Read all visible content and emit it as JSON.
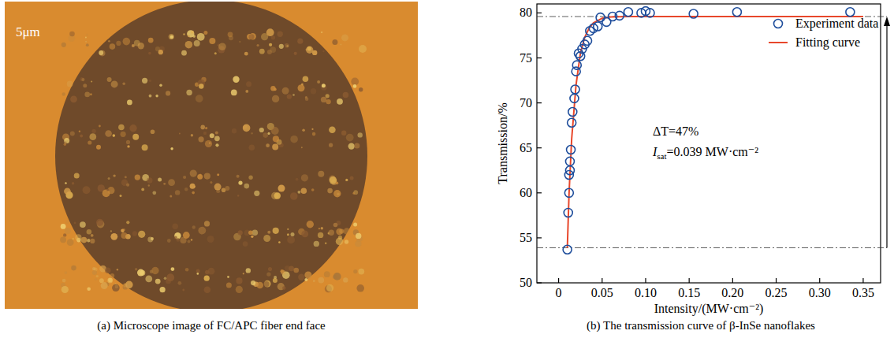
{
  "image_panel": {
    "scale_label": "5μm",
    "caption": "(a) Microscope image of FC/APC fiber end face"
  },
  "chart_data": {
    "type": "scatter",
    "caption": "(b) The transmission curve of β-InSe nanoflakes",
    "x_label": "Intensity/(MW·cm⁻²)",
    "y_label": "Transmission/%",
    "xlim": [
      -0.025,
      0.37
    ],
    "ylim": [
      50,
      81
    ],
    "xticks": [
      0,
      0.05,
      {
        "value": 0.1,
        "label": "0.10"
      },
      0.15,
      {
        "value": 0.2,
        "label": "0.20"
      },
      0.25,
      {
        "value": 0.3,
        "label": "0.30"
      },
      0.35
    ],
    "yticks": [
      50,
      55,
      60,
      65,
      70,
      75,
      80
    ],
    "grid": false,
    "legend": "upper right",
    "reference_lines": [
      79.6,
      53.9
    ],
    "annotations": [
      {
        "text": "ΔT=47%"
      },
      {
        "symbol": "I",
        "subscript": "sat",
        "text": "=0.039 MW·cm⁻²"
      }
    ],
    "series": [
      {
        "name": "Experiment data",
        "type": "scatter",
        "marker": "circle",
        "color": "#1f4e9c",
        "x": [
          0.01,
          0.011,
          0.012,
          0.012,
          0.013,
          0.013,
          0.014,
          0.015,
          0.016,
          0.018,
          0.019,
          0.02,
          0.021,
          0.023,
          0.025,
          0.027,
          0.03,
          0.033,
          0.036,
          0.04,
          0.045,
          0.048,
          0.055,
          0.062,
          0.07,
          0.08,
          0.095,
          0.1,
          0.105,
          0.155,
          0.205,
          0.335
        ],
        "values": [
          53.7,
          57.8,
          60.0,
          62.0,
          62.5,
          63.5,
          64.8,
          67.8,
          69.0,
          70.5,
          71.5,
          73.5,
          74.2,
          75.5,
          75.2,
          76.0,
          76.5,
          76.9,
          78.0,
          78.3,
          78.5,
          79.5,
          79.0,
          79.6,
          79.7,
          80.1,
          80.0,
          80.2,
          80.0,
          79.9,
          80.1,
          80.1
        ]
      },
      {
        "name": "Fitting curve",
        "type": "line",
        "line_style": "solid",
        "color": "#e8472b",
        "x": [
          0.01,
          0.012,
          0.015,
          0.02,
          0.025,
          0.03,
          0.035,
          0.04,
          0.05,
          0.06,
          0.08,
          0.1,
          0.2,
          0.35
        ],
        "values": [
          53.9,
          60.0,
          66.0,
          72.0,
          75.5,
          77.3,
          78.3,
          78.9,
          79.4,
          79.55,
          79.6,
          79.6,
          79.6,
          79.6
        ]
      }
    ]
  }
}
